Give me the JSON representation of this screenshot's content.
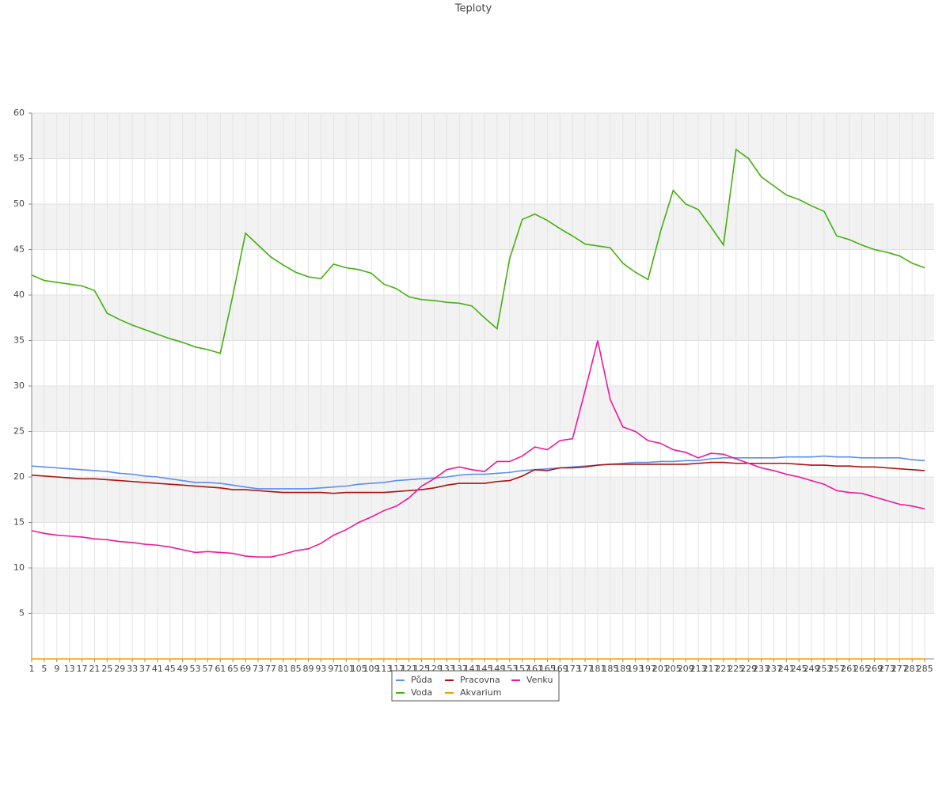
{
  "chart_data": {
    "type": "line",
    "title": "Teploty",
    "x": [
      1,
      5,
      9,
      13,
      17,
      21,
      25,
      29,
      33,
      37,
      41,
      45,
      49,
      53,
      57,
      61,
      65,
      69,
      73,
      77,
      81,
      85,
      89,
      93,
      97,
      101,
      105,
      109,
      113,
      117,
      121,
      125,
      129,
      133,
      137,
      141,
      145,
      149,
      153,
      157,
      161,
      165,
      169,
      173,
      177,
      181,
      185,
      189,
      193,
      197,
      201,
      205,
      209,
      213,
      217,
      221,
      225,
      229,
      233,
      237,
      241,
      245,
      249,
      253,
      257,
      261,
      265,
      269,
      273,
      277,
      281,
      285
    ],
    "xlim": [
      1,
      288
    ],
    "ylim": [
      0,
      60
    ],
    "yticks": [
      5,
      10,
      15,
      20,
      25,
      30,
      35,
      40,
      45,
      50,
      55,
      60
    ],
    "grid": true,
    "series": [
      {
        "name": "Půda",
        "color": "#5b8ff0",
        "values": [
          21.2,
          21.1,
          21.0,
          20.9,
          20.8,
          20.7,
          20.6,
          20.4,
          20.3,
          20.1,
          20.0,
          19.8,
          19.6,
          19.4,
          19.4,
          19.3,
          19.1,
          18.9,
          18.7,
          18.7,
          18.7,
          18.7,
          18.7,
          18.8,
          18.9,
          19.0,
          19.2,
          19.3,
          19.4,
          19.6,
          19.7,
          19.8,
          19.9,
          20.0,
          20.2,
          20.3,
          20.3,
          20.4,
          20.5,
          20.7,
          20.8,
          20.9,
          21.0,
          21.1,
          21.2,
          21.3,
          21.4,
          21.5,
          21.6,
          21.6,
          21.7,
          21.7,
          21.8,
          21.8,
          22.0,
          22.1,
          22.1,
          22.1,
          22.1,
          22.1,
          22.2,
          22.2,
          22.2,
          22.3,
          22.2,
          22.2,
          22.1,
          22.1,
          22.1,
          22.1,
          21.9,
          21.8
        ]
      },
      {
        "name": "Pracovna",
        "color": "#b01010",
        "values": [
          20.2,
          20.1,
          20.0,
          19.9,
          19.8,
          19.8,
          19.7,
          19.6,
          19.5,
          19.4,
          19.3,
          19.2,
          19.1,
          19.0,
          18.9,
          18.8,
          18.6,
          18.6,
          18.5,
          18.4,
          18.3,
          18.3,
          18.3,
          18.3,
          18.2,
          18.3,
          18.3,
          18.3,
          18.3,
          18.4,
          18.5,
          18.6,
          18.8,
          19.1,
          19.3,
          19.3,
          19.3,
          19.5,
          19.6,
          20.1,
          20.8,
          20.7,
          21.0,
          21.0,
          21.1,
          21.3,
          21.4,
          21.4,
          21.4,
          21.4,
          21.4,
          21.4,
          21.4,
          21.5,
          21.6,
          21.6,
          21.5,
          21.5,
          21.5,
          21.5,
          21.5,
          21.4,
          21.3,
          21.3,
          21.2,
          21.2,
          21.1,
          21.1,
          21.0,
          20.9,
          20.8,
          20.7
        ]
      },
      {
        "name": "Venku",
        "color": "#f0189a",
        "values": [
          14.1,
          13.8,
          13.6,
          13.5,
          13.4,
          13.2,
          13.1,
          12.9,
          12.8,
          12.6,
          12.5,
          12.3,
          12.0,
          11.7,
          11.8,
          11.7,
          11.6,
          11.3,
          11.2,
          11.2,
          11.5,
          11.9,
          12.1,
          12.7,
          13.6,
          14.2,
          15.0,
          15.6,
          16.3,
          16.8,
          17.7,
          19.0,
          19.8,
          20.8,
          21.1,
          20.8,
          20.6,
          21.7,
          21.7,
          22.3,
          23.3,
          23.0,
          24.0,
          24.2,
          29.5,
          35.0,
          28.5,
          25.5,
          25.0,
          24.0,
          23.7,
          23.0,
          22.7,
          22.1,
          22.6,
          22.5,
          22.0,
          21.5,
          21.0,
          20.7,
          20.3,
          20.0,
          19.6,
          19.2,
          18.5,
          18.3,
          18.2,
          17.8,
          17.4,
          17.0,
          16.8,
          16.5
        ]
      },
      {
        "name": "Voda",
        "color": "#44b010",
        "values": [
          42.2,
          41.6,
          41.4,
          41.2,
          41.0,
          40.5,
          38.0,
          37.3,
          36.7,
          36.2,
          35.7,
          35.2,
          34.8,
          34.3,
          34.0,
          33.6,
          40.0,
          46.8,
          45.5,
          44.2,
          43.3,
          42.5,
          42.0,
          41.8,
          43.4,
          43.0,
          42.8,
          42.4,
          41.2,
          40.7,
          39.8,
          39.5,
          39.4,
          39.2,
          39.1,
          38.8,
          37.5,
          36.3,
          44.0,
          48.3,
          48.9,
          48.2,
          47.3,
          46.5,
          45.6,
          45.4,
          45.2,
          43.5,
          42.5,
          41.7,
          47.0,
          51.5,
          50.0,
          49.4,
          47.5,
          45.5,
          56.0,
          55.0,
          53.0,
          52.0,
          51.0,
          50.5,
          49.8,
          49.2,
          46.5,
          46.1,
          45.5,
          45.0,
          44.7,
          44.3,
          43.5,
          43.0
        ]
      },
      {
        "name": "Akvarium",
        "color": "#f0a000",
        "values": [
          0,
          0,
          0,
          0,
          0,
          0,
          0,
          0,
          0,
          0,
          0,
          0,
          0,
          0,
          0,
          0,
          0,
          0,
          0,
          0,
          0,
          0,
          0,
          0,
          0,
          0,
          0,
          0,
          0,
          0,
          0,
          0,
          0,
          0,
          0,
          0,
          0,
          0,
          0,
          0,
          0,
          0,
          0,
          0,
          0,
          0,
          0,
          0,
          0,
          0,
          0,
          0,
          0,
          0,
          0,
          0,
          0,
          0,
          0,
          0,
          0,
          0,
          0,
          0,
          0,
          0,
          0,
          0,
          0,
          0,
          0,
          0
        ]
      }
    ]
  }
}
